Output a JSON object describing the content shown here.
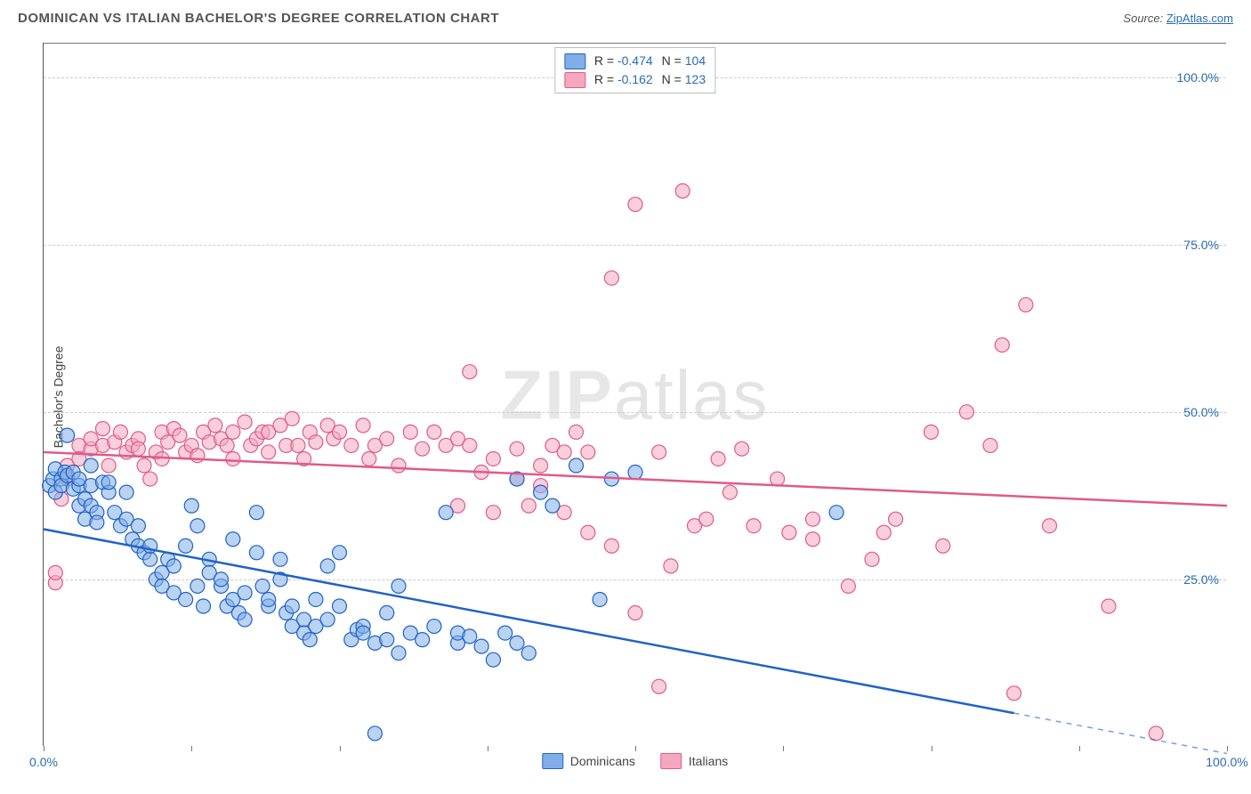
{
  "header": {
    "title": "DOMINICAN VS ITALIAN BACHELOR'S DEGREE CORRELATION CHART",
    "source_label": "Source:",
    "source_link": "ZipAtlas.com"
  },
  "watermark": {
    "left": "ZIP",
    "right": "atlas"
  },
  "chart": {
    "type": "scatter",
    "ylabel": "Bachelor's Degree",
    "xlim": [
      0,
      100
    ],
    "ylim": [
      0,
      105
    ],
    "xtick_positions": [
      0,
      12.5,
      25,
      37.5,
      50,
      62.5,
      75,
      87.5,
      100
    ],
    "xtick_labels": {
      "0": "0.0%",
      "100": "100.0%"
    },
    "ytick_positions": [
      25,
      50,
      75,
      100
    ],
    "ytick_labels": [
      "25.0%",
      "50.0%",
      "75.0%",
      "100.0%"
    ],
    "grid_color": "#cccccc",
    "background_color": "#ffffff",
    "axis_color": "#555555",
    "tick_label_color": "#2b6cb0",
    "watermark_color": "#000000",
    "watermark_opacity": 0.1,
    "marker_radius": 8,
    "marker_opacity": 0.55,
    "line_width": 2.5,
    "series": [
      {
        "name": "Dominicans",
        "fill_color": "#81aee8",
        "stroke_color": "#1f63c7",
        "trend": {
          "y_at_x0": 32.5,
          "y_at_x100": -1,
          "solid_until_x": 82
        },
        "stats": {
          "R": "-0.474",
          "N": "104"
        },
        "points": [
          [
            0.5,
            39
          ],
          [
            0.8,
            40
          ],
          [
            1,
            41.5
          ],
          [
            1,
            38
          ],
          [
            1.5,
            40
          ],
          [
            1.5,
            39
          ],
          [
            1.8,
            41
          ],
          [
            2,
            40.5
          ],
          [
            2,
            46.5
          ],
          [
            2.5,
            41
          ],
          [
            2.5,
            38.5
          ],
          [
            3,
            39
          ],
          [
            3,
            40
          ],
          [
            3,
            36
          ],
          [
            3.5,
            37
          ],
          [
            3.5,
            34
          ],
          [
            4,
            39
          ],
          [
            4,
            42
          ],
          [
            4,
            36
          ],
          [
            4.5,
            35
          ],
          [
            4.5,
            33.5
          ],
          [
            5,
            39.5
          ],
          [
            5.5,
            38
          ],
          [
            5.5,
            39.5
          ],
          [
            6,
            35
          ],
          [
            6.5,
            33
          ],
          [
            7,
            38
          ],
          [
            7,
            34
          ],
          [
            7.5,
            31
          ],
          [
            8,
            30
          ],
          [
            8,
            33
          ],
          [
            8.5,
            29
          ],
          [
            9,
            28
          ],
          [
            9,
            30
          ],
          [
            9.5,
            25
          ],
          [
            10,
            26
          ],
          [
            10,
            24
          ],
          [
            10.5,
            28
          ],
          [
            11,
            27
          ],
          [
            11,
            23
          ],
          [
            12,
            22
          ],
          [
            12,
            30
          ],
          [
            12.5,
            36
          ],
          [
            13,
            33
          ],
          [
            13,
            24
          ],
          [
            13.5,
            21
          ],
          [
            14,
            28
          ],
          [
            14,
            26
          ],
          [
            15,
            24
          ],
          [
            15,
            25
          ],
          [
            15.5,
            21
          ],
          [
            16,
            31
          ],
          [
            16,
            22
          ],
          [
            16.5,
            20
          ],
          [
            17,
            19
          ],
          [
            17,
            23
          ],
          [
            18,
            29
          ],
          [
            18,
            35
          ],
          [
            18.5,
            24
          ],
          [
            19,
            21
          ],
          [
            19,
            22
          ],
          [
            20,
            28
          ],
          [
            20,
            25
          ],
          [
            20.5,
            20
          ],
          [
            21,
            21
          ],
          [
            21,
            18
          ],
          [
            22,
            19
          ],
          [
            22,
            17
          ],
          [
            22.5,
            16
          ],
          [
            23,
            18
          ],
          [
            23,
            22
          ],
          [
            24,
            27
          ],
          [
            24,
            19
          ],
          [
            25,
            21
          ],
          [
            25,
            29
          ],
          [
            26,
            16
          ],
          [
            26.5,
            17.5
          ],
          [
            27,
            18
          ],
          [
            27,
            17
          ],
          [
            28,
            15.5
          ],
          [
            29,
            20
          ],
          [
            29,
            16
          ],
          [
            30,
            24
          ],
          [
            30,
            14
          ],
          [
            31,
            17
          ],
          [
            32,
            16
          ],
          [
            33,
            18
          ],
          [
            34,
            35
          ],
          [
            35,
            15.5
          ],
          [
            35,
            17
          ],
          [
            36,
            16.5
          ],
          [
            37,
            15
          ],
          [
            38,
            13
          ],
          [
            39,
            17
          ],
          [
            40,
            15.5
          ],
          [
            40,
            40
          ],
          [
            41,
            14
          ],
          [
            42,
            38
          ],
          [
            43,
            36
          ],
          [
            45,
            42
          ],
          [
            47,
            22
          ],
          [
            48,
            40
          ],
          [
            50,
            41
          ],
          [
            28,
            2
          ],
          [
            67,
            35
          ]
        ]
      },
      {
        "name": "Italians",
        "fill_color": "#f4a7bd",
        "stroke_color": "#e05a8a",
        "trend": {
          "y_at_x0": 44,
          "y_at_x100": 36,
          "solid_until_x": 100
        },
        "stats": {
          "R": "-0.162",
          "N": "123"
        },
        "points": [
          [
            1,
            24.5
          ],
          [
            1,
            26
          ],
          [
            1.5,
            37
          ],
          [
            2,
            40
          ],
          [
            2,
            42
          ],
          [
            3,
            45
          ],
          [
            3,
            43
          ],
          [
            4,
            44.5
          ],
          [
            4,
            46
          ],
          [
            5,
            45
          ],
          [
            5,
            47.5
          ],
          [
            5.5,
            42
          ],
          [
            6,
            45.5
          ],
          [
            6.5,
            47
          ],
          [
            7,
            44
          ],
          [
            7.5,
            45
          ],
          [
            8,
            46
          ],
          [
            8,
            44.5
          ],
          [
            8.5,
            42
          ],
          [
            9,
            40
          ],
          [
            9.5,
            44
          ],
          [
            10,
            47
          ],
          [
            10,
            43
          ],
          [
            10.5,
            45.5
          ],
          [
            11,
            47.5
          ],
          [
            11.5,
            46.5
          ],
          [
            12,
            44
          ],
          [
            12.5,
            45
          ],
          [
            13,
            43.5
          ],
          [
            13.5,
            47
          ],
          [
            14,
            45.5
          ],
          [
            14.5,
            48
          ],
          [
            15,
            46
          ],
          [
            15.5,
            45
          ],
          [
            16,
            47
          ],
          [
            16,
            43
          ],
          [
            17,
            48.5
          ],
          [
            17.5,
            45
          ],
          [
            18,
            46
          ],
          [
            18.5,
            47
          ],
          [
            19,
            44
          ],
          [
            19,
            47
          ],
          [
            20,
            48
          ],
          [
            20.5,
            45
          ],
          [
            21,
            49
          ],
          [
            21.5,
            45
          ],
          [
            22,
            43
          ],
          [
            22.5,
            47
          ],
          [
            23,
            45.5
          ],
          [
            24,
            48
          ],
          [
            24.5,
            46
          ],
          [
            25,
            47
          ],
          [
            26,
            45
          ],
          [
            27,
            48
          ],
          [
            27.5,
            43
          ],
          [
            28,
            45
          ],
          [
            29,
            46
          ],
          [
            30,
            42
          ],
          [
            31,
            47
          ],
          [
            32,
            44.5
          ],
          [
            33,
            47
          ],
          [
            34,
            45
          ],
          [
            35,
            46
          ],
          [
            35,
            36
          ],
          [
            36,
            56
          ],
          [
            36,
            45
          ],
          [
            37,
            41
          ],
          [
            38,
            43
          ],
          [
            38,
            35
          ],
          [
            40,
            44.5
          ],
          [
            40,
            40
          ],
          [
            41,
            36
          ],
          [
            42,
            42
          ],
          [
            42,
            39
          ],
          [
            43,
            45
          ],
          [
            44,
            35
          ],
          [
            44,
            44
          ],
          [
            45,
            47
          ],
          [
            46,
            32
          ],
          [
            46,
            44
          ],
          [
            48,
            30
          ],
          [
            48,
            70
          ],
          [
            50,
            81
          ],
          [
            50,
            20
          ],
          [
            52,
            44
          ],
          [
            52,
            9
          ],
          [
            53,
            27
          ],
          [
            54,
            83
          ],
          [
            55,
            33
          ],
          [
            56,
            34
          ],
          [
            57,
            43
          ],
          [
            58,
            38
          ],
          [
            59,
            44.5
          ],
          [
            60,
            33
          ],
          [
            62,
            40
          ],
          [
            63,
            32
          ],
          [
            65,
            34
          ],
          [
            65,
            31
          ],
          [
            68,
            24
          ],
          [
            70,
            28
          ],
          [
            71,
            32
          ],
          [
            72,
            34
          ],
          [
            75,
            47
          ],
          [
            76,
            30
          ],
          [
            78,
            50
          ],
          [
            80,
            45
          ],
          [
            81,
            60
          ],
          [
            82,
            8
          ],
          [
            83,
            66
          ],
          [
            85,
            33
          ],
          [
            90,
            21
          ],
          [
            94,
            2
          ]
        ]
      }
    ],
    "bottom_legend": [
      {
        "label": "Dominicans",
        "fill_color": "#81aee8",
        "stroke_color": "#1f63c7"
      },
      {
        "label": "Italians",
        "fill_color": "#f4a7bd",
        "stroke_color": "#e05a8a"
      }
    ]
  }
}
